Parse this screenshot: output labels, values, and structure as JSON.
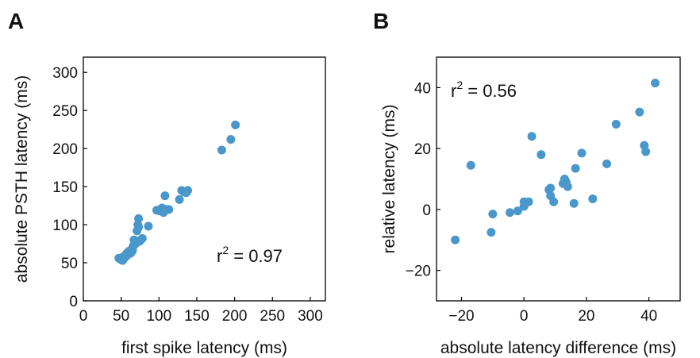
{
  "colors": {
    "marker": "#4a97cb",
    "axis": "#000000",
    "text": "#111111"
  },
  "chart_data": [
    {
      "panel": "A",
      "type": "scatter",
      "xlabel": "first spike latency (ms)",
      "ylabel": "absolute PSTH latency (ms)",
      "xlim": [
        0,
        320
      ],
      "ylim": [
        0,
        320
      ],
      "xticks": [
        0,
        50,
        100,
        150,
        200,
        250,
        300
      ],
      "yticks": [
        0,
        50,
        100,
        150,
        200,
        250,
        300
      ],
      "xtick_labels": [
        "0",
        "50",
        "100",
        "150",
        "200",
        "250",
        "300"
      ],
      "ytick_labels": [
        "0",
        "50",
        "100",
        "150",
        "200",
        "250",
        "300"
      ],
      "stat_base": "r",
      "stat_sup": "2",
      "stat_value": " = 0.97",
      "grid": false,
      "points": [
        [
          47,
          56
        ],
        [
          50,
          54
        ],
        [
          52,
          53
        ],
        [
          53,
          58
        ],
        [
          55,
          57
        ],
        [
          57,
          62
        ],
        [
          58,
          60
        ],
        [
          60,
          65
        ],
        [
          61,
          62
        ],
        [
          62,
          64
        ],
        [
          63,
          63
        ],
        [
          64,
          68
        ],
        [
          65,
          66
        ],
        [
          66,
          72
        ],
        [
          67,
          80
        ],
        [
          68,
          74
        ],
        [
          69,
          78
        ],
        [
          70,
          76
        ],
        [
          71,
          92
        ],
        [
          72,
          100
        ],
        [
          73,
          97
        ],
        [
          73,
          108
        ],
        [
          74,
          78
        ],
        [
          76,
          80
        ],
        [
          78,
          82
        ],
        [
          86,
          98
        ],
        [
          97,
          119
        ],
        [
          101,
          118
        ],
        [
          104,
          122
        ],
        [
          106,
          116
        ],
        [
          108,
          138
        ],
        [
          110,
          120
        ],
        [
          113,
          120
        ],
        [
          127,
          133
        ],
        [
          130,
          145
        ],
        [
          133,
          143
        ],
        [
          136,
          142
        ],
        [
          138,
          145
        ],
        [
          183,
          198
        ],
        [
          195,
          212
        ],
        [
          201,
          231
        ]
      ]
    },
    {
      "panel": "B",
      "type": "scatter",
      "xlabel": "absolute latency difference (ms)",
      "ylabel": "relative latency (ms)",
      "xlim": [
        -28,
        50
      ],
      "ylim": [
        -30,
        50
      ],
      "xticks": [
        -20,
        0,
        20,
        40
      ],
      "yticks": [
        -20,
        0,
        20,
        40
      ],
      "xtick_labels": [
        "−20",
        "0",
        "20",
        "40"
      ],
      "ytick_labels": [
        "−20",
        "0",
        "20",
        "40"
      ],
      "stat_base": "r",
      "stat_sup": "2",
      "stat_value": " = 0.56",
      "grid": false,
      "points": [
        [
          -22,
          -10
        ],
        [
          -17,
          14.5
        ],
        [
          -10.5,
          -7.5
        ],
        [
          -10,
          -1.5
        ],
        [
          -4.5,
          -1
        ],
        [
          -2,
          -0.5
        ],
        [
          0,
          2.5
        ],
        [
          0,
          1
        ],
        [
          1.5,
          2.5
        ],
        [
          2.5,
          24
        ],
        [
          5.5,
          18
        ],
        [
          8,
          6.5
        ],
        [
          8.5,
          7
        ],
        [
          8.5,
          4.5
        ],
        [
          9.5,
          2.5
        ],
        [
          12.5,
          8.5
        ],
        [
          13,
          10
        ],
        [
          13.5,
          9
        ],
        [
          14,
          7.5
        ],
        [
          16,
          2
        ],
        [
          16.5,
          13.5
        ],
        [
          18.5,
          18.5
        ],
        [
          22,
          3.5
        ],
        [
          26.5,
          15
        ],
        [
          29.5,
          28
        ],
        [
          37,
          32
        ],
        [
          38.5,
          21
        ],
        [
          39,
          19
        ],
        [
          42,
          41.5
        ]
      ]
    }
  ]
}
